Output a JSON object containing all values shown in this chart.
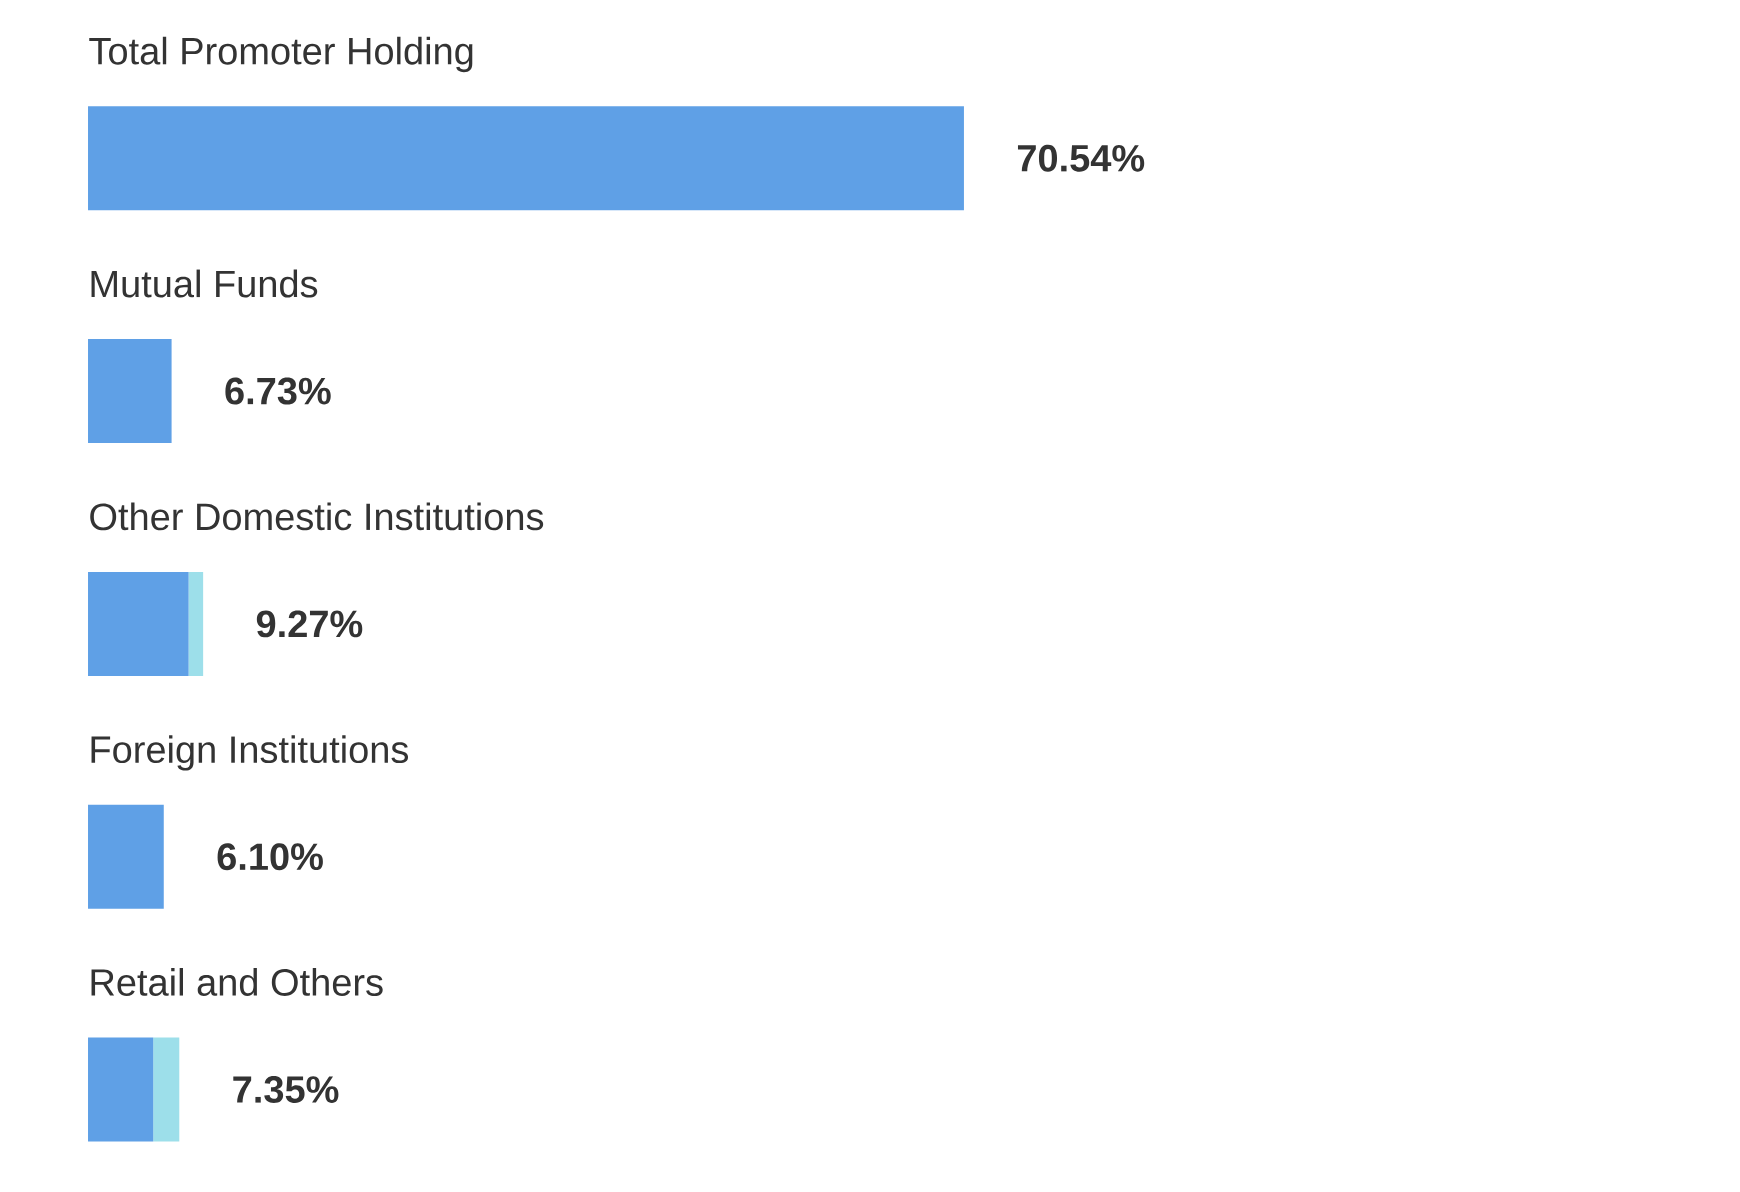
{
  "chart_data": {
    "type": "bar",
    "orientation": "horizontal",
    "stacked": true,
    "categories": [
      "Total Promoter Holding",
      "Mutual Funds",
      "Other Domestic Institutions",
      "Foreign Institutions",
      "Retail and Others"
    ],
    "series": [
      {
        "color": "#5fa0e6",
        "values": [
          70.54,
          6.73,
          8.1,
          6.1,
          5.25
        ],
        "value_labels": [
          "70.54%",
          "6.73%",
          null,
          "6.10%",
          null
        ]
      },
      {
        "color": "#9ddfea",
        "values": [
          null,
          null,
          1.17,
          null,
          2.1
        ]
      }
    ],
    "totals": [
      null,
      null,
      "9.27%",
      null,
      "7.35%"
    ]
  }
}
